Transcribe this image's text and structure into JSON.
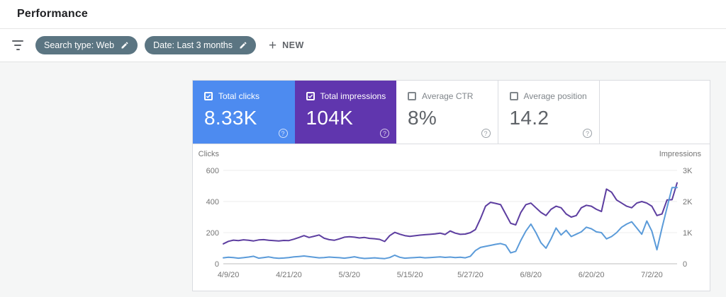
{
  "header": {
    "title": "Performance"
  },
  "filter_bar": {
    "chips": [
      {
        "label": "Search type: Web"
      },
      {
        "label": "Date: Last 3 months"
      }
    ],
    "new_button_label": "NEW",
    "plus_glyph": "+",
    "chip_color": "#5b7582"
  },
  "icons": {
    "help_glyph": "?"
  },
  "metrics": [
    {
      "label": "Total clicks",
      "value": "8.33K",
      "checked": true,
      "color": "#4d8bf0"
    },
    {
      "label": "Total impressions",
      "value": "104K",
      "checked": true,
      "color": "#6036ae"
    },
    {
      "label": "Average CTR",
      "value": "8%",
      "checked": false,
      "color": null
    },
    {
      "label": "Average position",
      "value": "14.2",
      "checked": false,
      "color": null
    }
  ],
  "chart_data": {
    "type": "line",
    "left_axis": {
      "label": "Clicks",
      "ticks": [
        "600",
        "400",
        "200",
        "0"
      ],
      "min": 0,
      "max": 600
    },
    "right_axis": {
      "label": "Impressions",
      "ticks": [
        "3K",
        "2K",
        "1K",
        "0"
      ],
      "min": 0,
      "max": 3000
    },
    "x_tick_labels": [
      "4/9/20",
      "4/21/20",
      "5/3/20",
      "5/15/20",
      "5/27/20",
      "6/8/20",
      "6/20/20",
      "7/2/20"
    ],
    "x_tick_indices": [
      1,
      13,
      25,
      37,
      49,
      61,
      73,
      85
    ],
    "num_points": 91,
    "grid": true,
    "series": [
      {
        "name": "Total impressions",
        "axis": "right",
        "color": "#5d3ea0",
        "values": [
          640,
          720,
          760,
          745,
          770,
          755,
          735,
          765,
          775,
          755,
          745,
          735,
          750,
          745,
          790,
          845,
          905,
          845,
          885,
          925,
          820,
          775,
          755,
          800,
          855,
          870,
          855,
          830,
          845,
          815,
          805,
          785,
          715,
          905,
          1010,
          950,
          905,
          880,
          900,
          920,
          935,
          945,
          960,
          985,
          940,
          1055,
          985,
          945,
          955,
          1000,
          1100,
          1450,
          1850,
          1975,
          1940,
          1900,
          1600,
          1300,
          1250,
          1650,
          1900,
          1950,
          1800,
          1650,
          1550,
          1750,
          1850,
          1800,
          1600,
          1500,
          1550,
          1800,
          1880,
          1850,
          1750,
          1680,
          2400,
          2300,
          2050,
          1950,
          1850,
          1800,
          1950,
          2000,
          1950,
          1850,
          1550,
          1600,
          2050,
          2060,
          2600
        ]
      },
      {
        "name": "Total clicks",
        "axis": "left",
        "color": "#5b9bd9",
        "values": [
          38,
          42,
          40,
          36,
          39,
          43,
          48,
          36,
          40,
          44,
          38,
          35,
          37,
          40,
          44,
          47,
          50,
          46,
          42,
          38,
          40,
          43,
          41,
          39,
          36,
          40,
          45,
          38,
          34,
          36,
          38,
          35,
          33,
          40,
          55,
          42,
          36,
          38,
          40,
          42,
          38,
          40,
          42,
          44,
          41,
          43,
          40,
          42,
          38,
          48,
          85,
          105,
          112,
          118,
          125,
          130,
          120,
          70,
          80,
          150,
          210,
          255,
          200,
          135,
          100,
          160,
          230,
          185,
          215,
          175,
          190,
          205,
          235,
          225,
          205,
          200,
          160,
          175,
          200,
          235,
          255,
          270,
          230,
          190,
          275,
          210,
          90,
          230,
          360,
          490,
          490
        ]
      }
    ]
  }
}
